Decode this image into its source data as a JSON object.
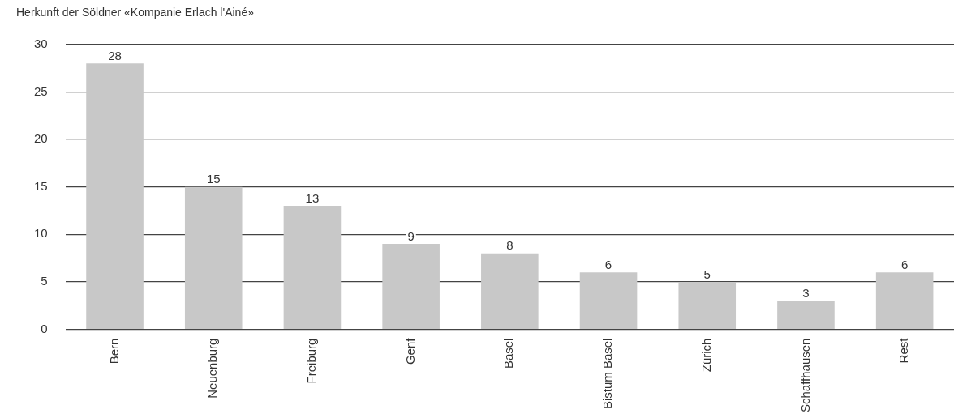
{
  "chart_data": {
    "type": "bar",
    "title": "Herkunft der Söldner «Kompanie Erlach l'Ainé»",
    "categories": [
      "Bern",
      "Neuenburg",
      "Freiburg",
      "Genf",
      "Basel",
      "Bistum Basel",
      "Zürich",
      "Schaffhausen",
      "Rest"
    ],
    "values": [
      28,
      15,
      13,
      9,
      8,
      6,
      5,
      3,
      6
    ],
    "color": "#c8c8c8",
    "ylim": [
      0,
      30
    ],
    "yticks": [
      0,
      5,
      10,
      15,
      20,
      25,
      30
    ],
    "grid": "y",
    "data_labels": true
  }
}
